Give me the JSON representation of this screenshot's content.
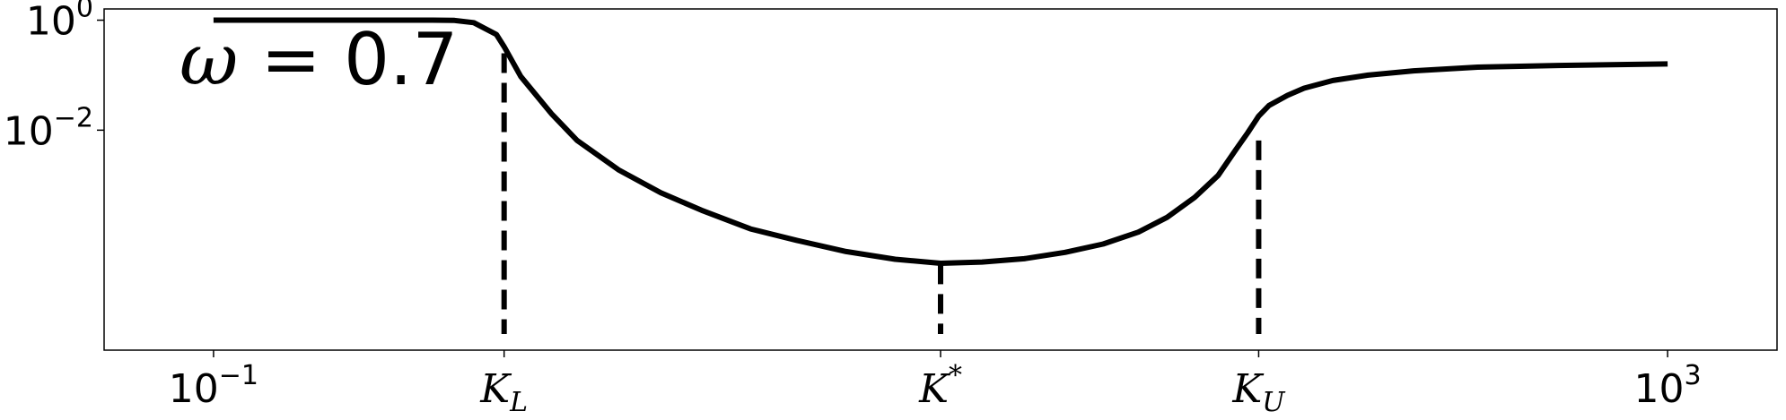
{
  "chart_data": {
    "type": "line",
    "x_scale": "log",
    "y_scale": "log",
    "xlim": [
      0.05,
      2000
    ],
    "ylim": [
      1e-06,
      1.6
    ],
    "x_ticks": [
      {
        "base": "10",
        "exp": "−1",
        "value": 0.1
      },
      {
        "base": "10",
        "exp": "3",
        "value": 1000
      }
    ],
    "x_marker_ticks": [
      {
        "symbol": "K",
        "sub": "L",
        "sup": "",
        "value": 0.63
      },
      {
        "symbol": "K",
        "sub": "",
        "sup": "*",
        "value": 10
      },
      {
        "symbol": "K",
        "sub": "U",
        "sup": "",
        "value": 75
      }
    ],
    "y_ticks": [
      {
        "base": "10",
        "exp": "0",
        "value": 1
      },
      {
        "base": "10",
        "exp": "−2",
        "value": 0.01
      }
    ],
    "annotation": {
      "symbol": "ω",
      "text": " = 0.7"
    },
    "series": [
      {
        "x": [
          0.1,
          0.2,
          0.4,
          0.46,
          0.52,
          0.6,
          0.63,
          0.7,
          0.85,
          1.0,
          1.3,
          1.7,
          2.2,
          3.0,
          4.0,
          5.5,
          7.5,
          10,
          13,
          17,
          22,
          28,
          35,
          42,
          50,
          58,
          65,
          70,
          75,
          80,
          90,
          100,
          120,
          150,
          200,
          300,
          500,
          700,
          1000
        ],
        "y": [
          1.0,
          1.0,
          1.0,
          0.99,
          0.9,
          0.55,
          0.33,
          0.095,
          0.02,
          0.0065,
          0.0019,
          0.00073,
          0.00035,
          0.00016,
          0.0001,
          6.2e-05,
          4.5e-05,
          3.8e-05,
          4e-05,
          4.6e-05,
          6e-05,
          8.5e-05,
          0.00014,
          0.00026,
          0.0006,
          0.0015,
          0.0045,
          0.009,
          0.018,
          0.028,
          0.043,
          0.058,
          0.08,
          0.1,
          0.12,
          0.14,
          0.15,
          0.155,
          0.16
        ]
      }
    ],
    "dashed_lines": [
      {
        "x": 0.63,
        "y_top": 0.25
      },
      {
        "x": 10,
        "y_top": 3.6e-05
      },
      {
        "x": 75,
        "y_top": 0.0065
      }
    ],
    "grid": false,
    "legend": "none"
  }
}
